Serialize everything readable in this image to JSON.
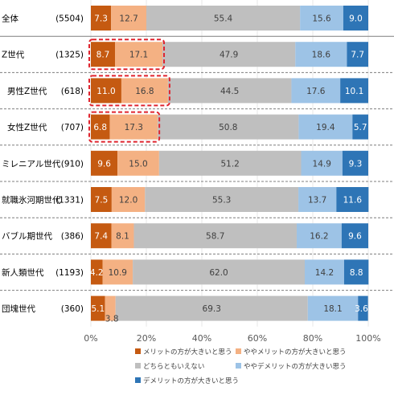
{
  "chart_data": {
    "type": "bar",
    "orientation": "horizontal",
    "stacked": true,
    "percent": true,
    "xlim": [
      0,
      100
    ],
    "x_ticks": [
      "0%",
      "20%",
      "40%",
      "60%",
      "80%",
      "100%"
    ],
    "grid": true,
    "legend_position": "bottom",
    "categories": [
      {
        "label": "全体",
        "n": "(5504)"
      },
      {
        "label": "Z世代",
        "n": "(1325)"
      },
      {
        "label": "男性Z世代",
        "n": "(618)"
      },
      {
        "label": "女性Z世代",
        "n": "(707)"
      },
      {
        "label": "ミレニアル世代",
        "n": "(910)"
      },
      {
        "label": "就職氷河期世代",
        "n": "(1331)"
      },
      {
        "label": "バブル期世代",
        "n": "(386)"
      },
      {
        "label": "新人類世代",
        "n": "(1193)"
      },
      {
        "label": "団塊世代",
        "n": "(360)"
      }
    ],
    "series": [
      {
        "name": "メリットの方が大きいと思う",
        "color": "#c55a11",
        "label_color": "#ffffff",
        "values": [
          7.3,
          8.7,
          11.0,
          6.8,
          9.6,
          7.5,
          7.4,
          4.2,
          5.1
        ]
      },
      {
        "name": "ややメリットの方が大きいと思う",
        "color": "#f4b183",
        "label_color": "#404040",
        "values": [
          12.7,
          17.1,
          16.8,
          17.3,
          15.0,
          12.0,
          8.1,
          10.9,
          3.8
        ]
      },
      {
        "name": "どちらともいえない",
        "color": "#bfbfbf",
        "label_color": "#404040",
        "values": [
          55.4,
          47.9,
          44.5,
          50.8,
          51.2,
          55.3,
          58.7,
          62.0,
          69.3
        ]
      },
      {
        "name": "ややデメリットの方が大きい思う",
        "color": "#9dc3e6",
        "label_color": "#404040",
        "values": [
          15.6,
          18.6,
          17.6,
          19.4,
          14.9,
          13.7,
          16.2,
          14.2,
          18.1
        ]
      },
      {
        "name": "デメリットの方が大きいと思う",
        "color": "#2e75b6",
        "label_color": "#ffffff",
        "values": [
          9.0,
          7.7,
          10.1,
          5.7,
          9.3,
          11.6,
          9.6,
          8.8,
          3.6
        ]
      }
    ],
    "highlight": {
      "color": "#e0242e",
      "rows": [
        1,
        2,
        3
      ],
      "series_span": [
        0,
        1
      ]
    },
    "separators_after_rows": [
      0,
      1,
      2,
      3,
      4,
      5,
      6,
      7
    ]
  }
}
